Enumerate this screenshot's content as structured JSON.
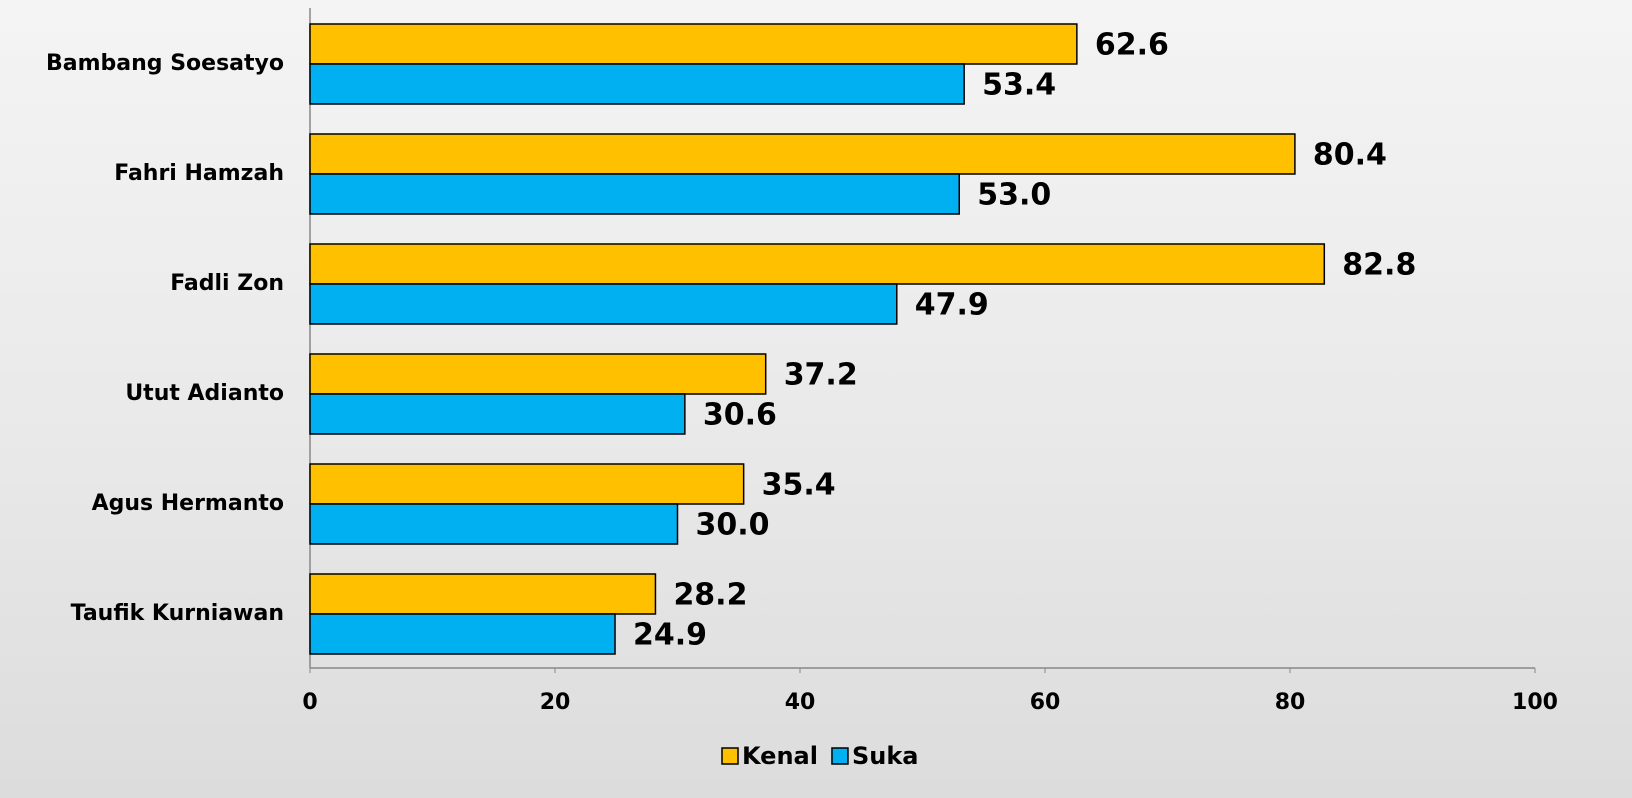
{
  "chart_data": {
    "type": "hbar",
    "categories": [
      "Bambang Soesatyo",
      "Fahri Hamzah",
      "Fadli Zon",
      "Utut Adianto",
      "Agus Hermanto",
      "Taufik Kurniawan"
    ],
    "series": [
      {
        "name": "Kenal",
        "color": "#ffc000",
        "values": [
          62.6,
          80.4,
          82.8,
          37.2,
          35.4,
          28.2
        ],
        "value_labels": [
          "62.6",
          "80.4",
          "82.8",
          "37.2",
          "35.4",
          "28.2"
        ]
      },
      {
        "name": "Suka",
        "color": "#00b0f0",
        "values": [
          53.4,
          53.0,
          47.9,
          30.6,
          30.0,
          24.9
        ],
        "value_labels": [
          "53.4",
          "53.0",
          "47.9",
          "30.6",
          "30.0",
          "24.9"
        ]
      }
    ],
    "xlim": [
      0,
      100
    ],
    "xticks": [
      0,
      20,
      40,
      60,
      80,
      100
    ],
    "legend": "bottom"
  }
}
